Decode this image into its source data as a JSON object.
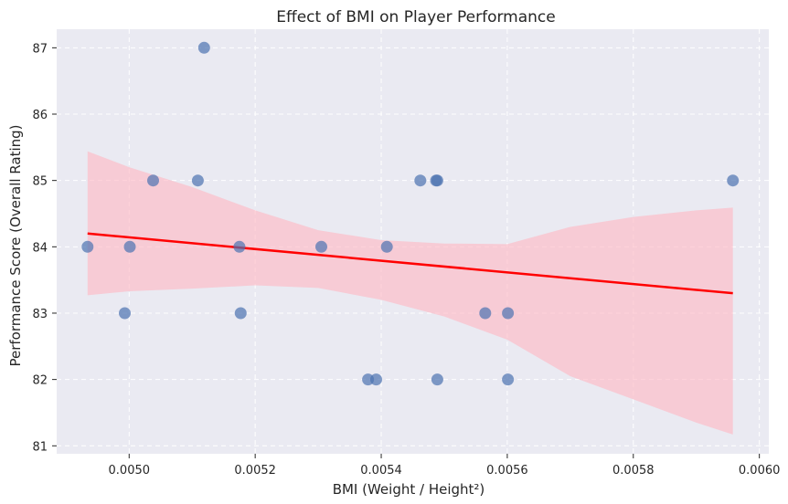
{
  "chart_data": {
    "type": "scatter",
    "title": "Effect of BMI on Player Performance",
    "xlabel": "BMI (Weight / Height²)",
    "ylabel": "Performance Score (Overall Rating)",
    "xlim": [
      0.004885,
      0.006015
    ],
    "ylim": [
      80.88,
      87.28
    ],
    "x_ticks": [
      0.005,
      0.0052,
      0.0054,
      0.0056,
      0.0058,
      0.006
    ],
    "x_tick_labels": [
      "0.0050",
      "0.0052",
      "0.0054",
      "0.0056",
      "0.0058",
      "0.0060"
    ],
    "y_ticks": [
      81,
      82,
      83,
      84,
      85,
      86,
      87
    ],
    "y_tick_labels": [
      "81",
      "82",
      "83",
      "84",
      "85",
      "86",
      "87"
    ],
    "grid": true,
    "points": [
      {
        "x": 0.004934,
        "y": 84
      },
      {
        "x": 0.004993,
        "y": 83
      },
      {
        "x": 0.005001,
        "y": 84
      },
      {
        "x": 0.005038,
        "y": 85
      },
      {
        "x": 0.005109,
        "y": 85
      },
      {
        "x": 0.005119,
        "y": 87
      },
      {
        "x": 0.005175,
        "y": 84
      },
      {
        "x": 0.005177,
        "y": 83
      },
      {
        "x": 0.005305,
        "y": 84
      },
      {
        "x": 0.005379,
        "y": 82
      },
      {
        "x": 0.005392,
        "y": 82
      },
      {
        "x": 0.005409,
        "y": 84
      },
      {
        "x": 0.005462,
        "y": 85
      },
      {
        "x": 0.005487,
        "y": 85
      },
      {
        "x": 0.005489,
        "y": 85
      },
      {
        "x": 0.005489,
        "y": 82
      },
      {
        "x": 0.005565,
        "y": 83
      },
      {
        "x": 0.005601,
        "y": 83
      },
      {
        "x": 0.005601,
        "y": 82
      },
      {
        "x": 0.005958,
        "y": 85
      }
    ],
    "regression": {
      "x": [
        0.004934,
        0.005958
      ],
      "y": [
        84.2,
        83.3
      ]
    },
    "confidence_band": {
      "x": [
        0.004934,
        0.005,
        0.0051,
        0.0052,
        0.0053,
        0.0054,
        0.0055,
        0.0056,
        0.0057,
        0.0058,
        0.0059,
        0.005958
      ],
      "upper": [
        85.44,
        85.2,
        84.9,
        84.55,
        84.25,
        84.1,
        84.05,
        84.04,
        84.3,
        84.45,
        84.55,
        84.59
      ],
      "lower": [
        83.27,
        83.33,
        83.37,
        83.42,
        83.38,
        83.2,
        82.95,
        82.6,
        82.05,
        81.7,
        81.35,
        81.17
      ]
    },
    "colors": {
      "background": "#EAEAF2",
      "grid": "#FFFFFF",
      "points": "#4C72B0",
      "regression": "#FF0000",
      "band": "#FFB6C1"
    }
  }
}
